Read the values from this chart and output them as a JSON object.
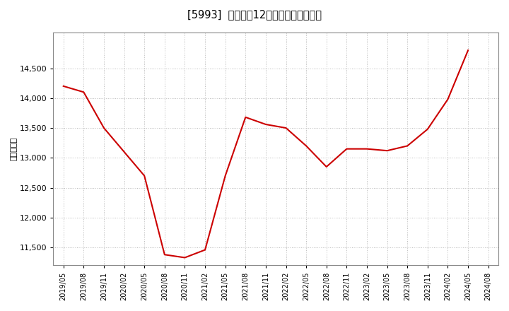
{
  "title": "[5993]  売上高の12か月移動合計の推移",
  "ylabel": "（百万円）",
  "line_color": "#cc0000",
  "background_color": "#ffffff",
  "grid_color": "#aaaaaa",
  "dates": [
    "2019/05",
    "2019/08",
    "2019/11",
    "2020/02",
    "2020/05",
    "2020/08",
    "2020/11",
    "2021/02",
    "2021/05",
    "2021/08",
    "2021/11",
    "2022/02",
    "2022/05",
    "2022/08",
    "2022/11",
    "2023/02",
    "2023/05",
    "2023/08",
    "2023/11",
    "2024/02",
    "2024/05",
    "2024/08"
  ],
  "values": [
    14200,
    14100,
    13500,
    13100,
    12700,
    11380,
    11330,
    11460,
    12700,
    13680,
    13560,
    13500,
    13200,
    12850,
    13150,
    13150,
    13120,
    13200,
    13480,
    13980,
    14800,
    null
  ],
  "yticks": [
    11500,
    12000,
    12500,
    13000,
    13500,
    14000,
    14500
  ],
  "ylim": [
    11200,
    15100
  ],
  "xtick_labels": [
    "2019/05",
    "2019/08",
    "2019/11",
    "2020/02",
    "2020/05",
    "2020/08",
    "2020/11",
    "2021/02",
    "2021/05",
    "2021/08",
    "2021/11",
    "2022/02",
    "2022/05",
    "2022/08",
    "2022/11",
    "2023/02",
    "2023/05",
    "2023/08",
    "2023/11",
    "2024/02",
    "2024/05",
    "2024/08"
  ]
}
